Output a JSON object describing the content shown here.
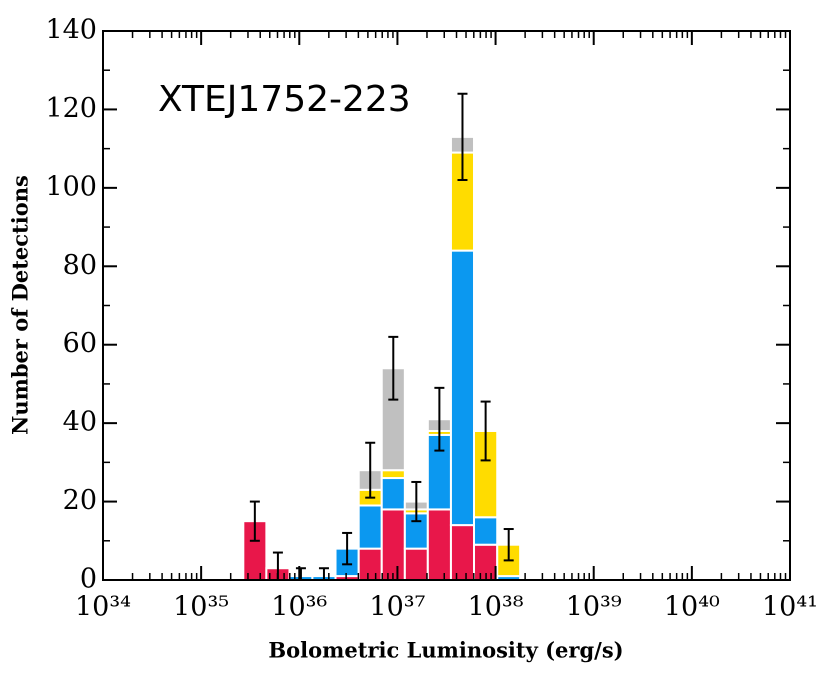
{
  "chart_data": {
    "type": "histogram",
    "annotation": "XTEJ1752-223",
    "x_label": "Bolometric Luminosity (erg/s)",
    "y_label": "Number of Detections",
    "log_x": true,
    "stacked": true,
    "bins": [
      2.69e+35,
      4.62e+35,
      7.94e+35,
      1.36e+36,
      2.34e+36,
      4.03e+36,
      6.92e+36,
      1.19e+37,
      2.04e+37,
      3.51e+37,
      6.03e+37,
      1.04e+38,
      1.78e+38
    ],
    "series": [
      {
        "color": "#e8174a",
        "values": [
          15,
          3,
          0,
          0,
          1,
          8,
          18,
          8,
          18,
          14,
          9,
          0
        ]
      },
      {
        "color": "#0b98f0",
        "values": [
          0,
          0,
          1,
          1,
          7,
          11,
          8,
          9,
          19,
          70,
          7,
          1
        ]
      },
      {
        "color": "#ffdc00",
        "values": [
          0,
          0,
          0,
          0,
          0,
          4,
          2,
          1,
          1,
          25,
          22,
          8
        ]
      },
      {
        "color": "#c0c0c0",
        "values": [
          0,
          0,
          0,
          0,
          0,
          5,
          26,
          2,
          3,
          4,
          0,
          0
        ]
      }
    ],
    "errors": [
      5,
      4,
      2,
      2,
      4,
      7,
      8,
      5,
      8,
      11,
      7.5,
      4
    ],
    "xlim": [
      1e+34,
      1e+41
    ],
    "xticks": [
      {
        "value": 1e+34,
        "label": "10³⁴"
      },
      {
        "value": 1e+35,
        "label": "10³⁵"
      },
      {
        "value": 1e+36,
        "label": "10³⁶"
      },
      {
        "value": 1e+37,
        "label": "10³⁷"
      },
      {
        "value": 1e+38,
        "label": "10³⁸"
      },
      {
        "value": 1e+39,
        "label": "10³⁹"
      },
      {
        "value": 1e+40,
        "label": "10⁴⁰"
      },
      {
        "value": 1e+41,
        "label": "10⁴¹"
      }
    ],
    "ylim": [
      0,
      140
    ],
    "yticks": [
      0,
      20,
      40,
      60,
      80,
      100,
      120,
      140
    ]
  }
}
